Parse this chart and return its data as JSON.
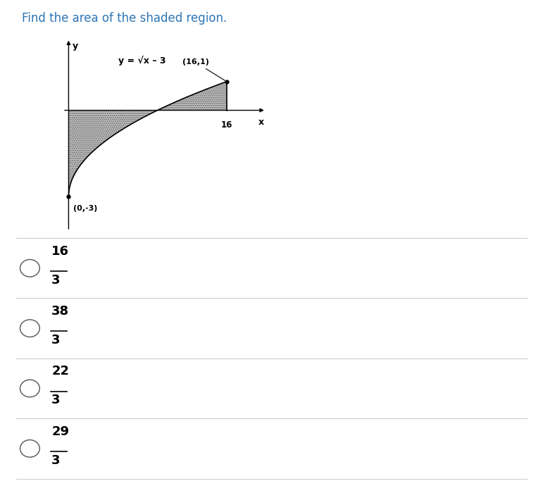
{
  "title": "Find the area of the shaded region.",
  "title_fontsize": 12,
  "title_color": "#2e75b6",
  "equation_label": "y = √x – 3",
  "point1_label": "(16,1)",
  "point2_label": "(0,-3)",
  "x_label": "x",
  "y_label": "y",
  "x_tick_label": "16",
  "options": [
    {
      "numerator": "16",
      "denominator": "3"
    },
    {
      "numerator": "38",
      "denominator": "3"
    },
    {
      "numerator": "22",
      "denominator": "3"
    },
    {
      "numerator": "29",
      "denominator": "3"
    }
  ],
  "shaded_color": "#b0b0b0",
  "background_color": "#ffffff",
  "axis_color": "#000000",
  "graph_xlim": [
    -2,
    20
  ],
  "graph_ylim": [
    -4.2,
    2.5
  ]
}
